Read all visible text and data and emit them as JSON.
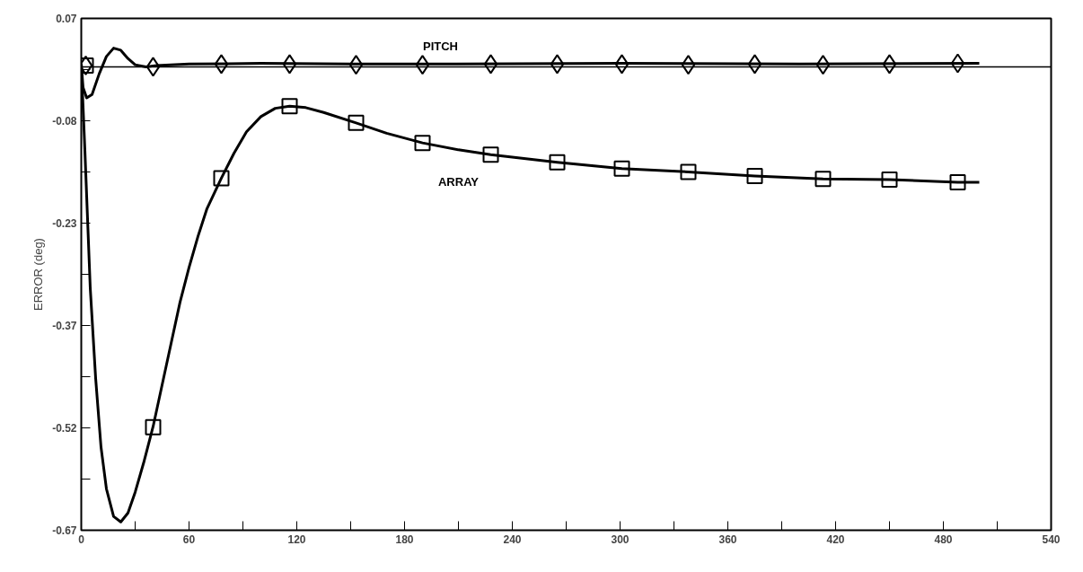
{
  "chart_data": {
    "type": "line",
    "ylabel": "ERROR (deg)",
    "xlim": [
      0,
      540
    ],
    "ylim": [
      -0.67,
      0.07
    ],
    "xticks": [
      0,
      {
        "value": 30,
        "label": null
      },
      60,
      {
        "value": 90,
        "label": null
      },
      120,
      {
        "value": 150,
        "label": null
      },
      180,
      {
        "value": 210,
        "label": null
      },
      240,
      {
        "value": 270,
        "label": null
      },
      300,
      {
        "value": 330,
        "label": null
      },
      360,
      {
        "value": 390,
        "label": null
      },
      420,
      {
        "value": 450,
        "label": null
      },
      480,
      {
        "value": 510,
        "label": null
      },
      540
    ],
    "yticks": [
      -0.67,
      {
        "value": -0.596,
        "label": null
      },
      {
        "value": -0.522,
        "label": "-0.52"
      },
      {
        "value": -0.448,
        "label": null
      },
      {
        "value": -0.374,
        "label": "-0.37"
      },
      {
        "value": -0.3,
        "label": null
      },
      {
        "value": -0.226,
        "label": "-0.23"
      },
      {
        "value": -0.152,
        "label": null
      },
      {
        "value": -0.078,
        "label": "-0.08"
      },
      {
        "value": -0.004,
        "label": null
      },
      0.07
    ],
    "grid": false,
    "line_style": "solid",
    "ref_lines": [
      {
        "axis": "y",
        "value": 0.0,
        "color": "#000000"
      }
    ],
    "series": [
      {
        "type": "line",
        "name": "PITCH",
        "color": "#000000",
        "marker": "none",
        "x": [
          0,
          1,
          3,
          6,
          10,
          14,
          18,
          22,
          26,
          30,
          36,
          42,
          60,
          100,
          150,
          200,
          300,
          400,
          500
        ],
        "values": [
          0.004,
          -0.03,
          -0.045,
          -0.04,
          -0.01,
          0.015,
          0.027,
          0.024,
          0.012,
          0.003,
          0.0,
          0.002,
          0.004,
          0.005,
          0.004,
          0.004,
          0.005,
          0.004,
          0.005
        ]
      },
      {
        "type": "scatter",
        "color": "#000000",
        "marker": "diamond",
        "x": [
          2.5,
          40,
          78,
          116,
          153,
          190,
          228,
          265,
          301,
          338,
          375,
          413,
          450,
          488
        ],
        "values": [
          0.002,
          0.0,
          0.004,
          0.004,
          0.003,
          0.003,
          0.004,
          0.004,
          0.004,
          0.003,
          0.004,
          0.003,
          0.004,
          0.005
        ]
      },
      {
        "type": "line",
        "name": "ARRAY",
        "color": "#000000",
        "marker": "none",
        "x": [
          0,
          2,
          5,
          8,
          11,
          14,
          18,
          22,
          26,
          30,
          35,
          40,
          45,
          50,
          55,
          60,
          65,
          70,
          78,
          85,
          92,
          100,
          108,
          116,
          125,
          135,
          153,
          170,
          190,
          210,
          228,
          265,
          301,
          338,
          375,
          413,
          450,
          488,
          500
        ],
        "values": [
          0.004,
          -0.12,
          -0.32,
          -0.45,
          -0.55,
          -0.61,
          -0.65,
          -0.658,
          -0.645,
          -0.615,
          -0.57,
          -0.52,
          -0.46,
          -0.4,
          -0.34,
          -0.29,
          -0.245,
          -0.205,
          -0.161,
          -0.125,
          -0.094,
          -0.072,
          -0.06,
          -0.057,
          -0.059,
          -0.066,
          -0.081,
          -0.096,
          -0.11,
          -0.12,
          -0.127,
          -0.138,
          -0.147,
          -0.152,
          -0.158,
          -0.162,
          -0.163,
          -0.167,
          -0.167
        ]
      },
      {
        "type": "scatter",
        "color": "#000000",
        "marker": "square",
        "x": [
          2.5,
          40,
          78,
          116,
          153,
          190,
          228,
          265,
          301,
          338,
          375,
          413,
          450,
          488
        ],
        "values": [
          0.002,
          -0.521,
          -0.161,
          -0.057,
          -0.081,
          -0.11,
          -0.127,
          -0.138,
          -0.147,
          -0.152,
          -0.158,
          -0.162,
          -0.163,
          -0.167
        ]
      }
    ]
  }
}
